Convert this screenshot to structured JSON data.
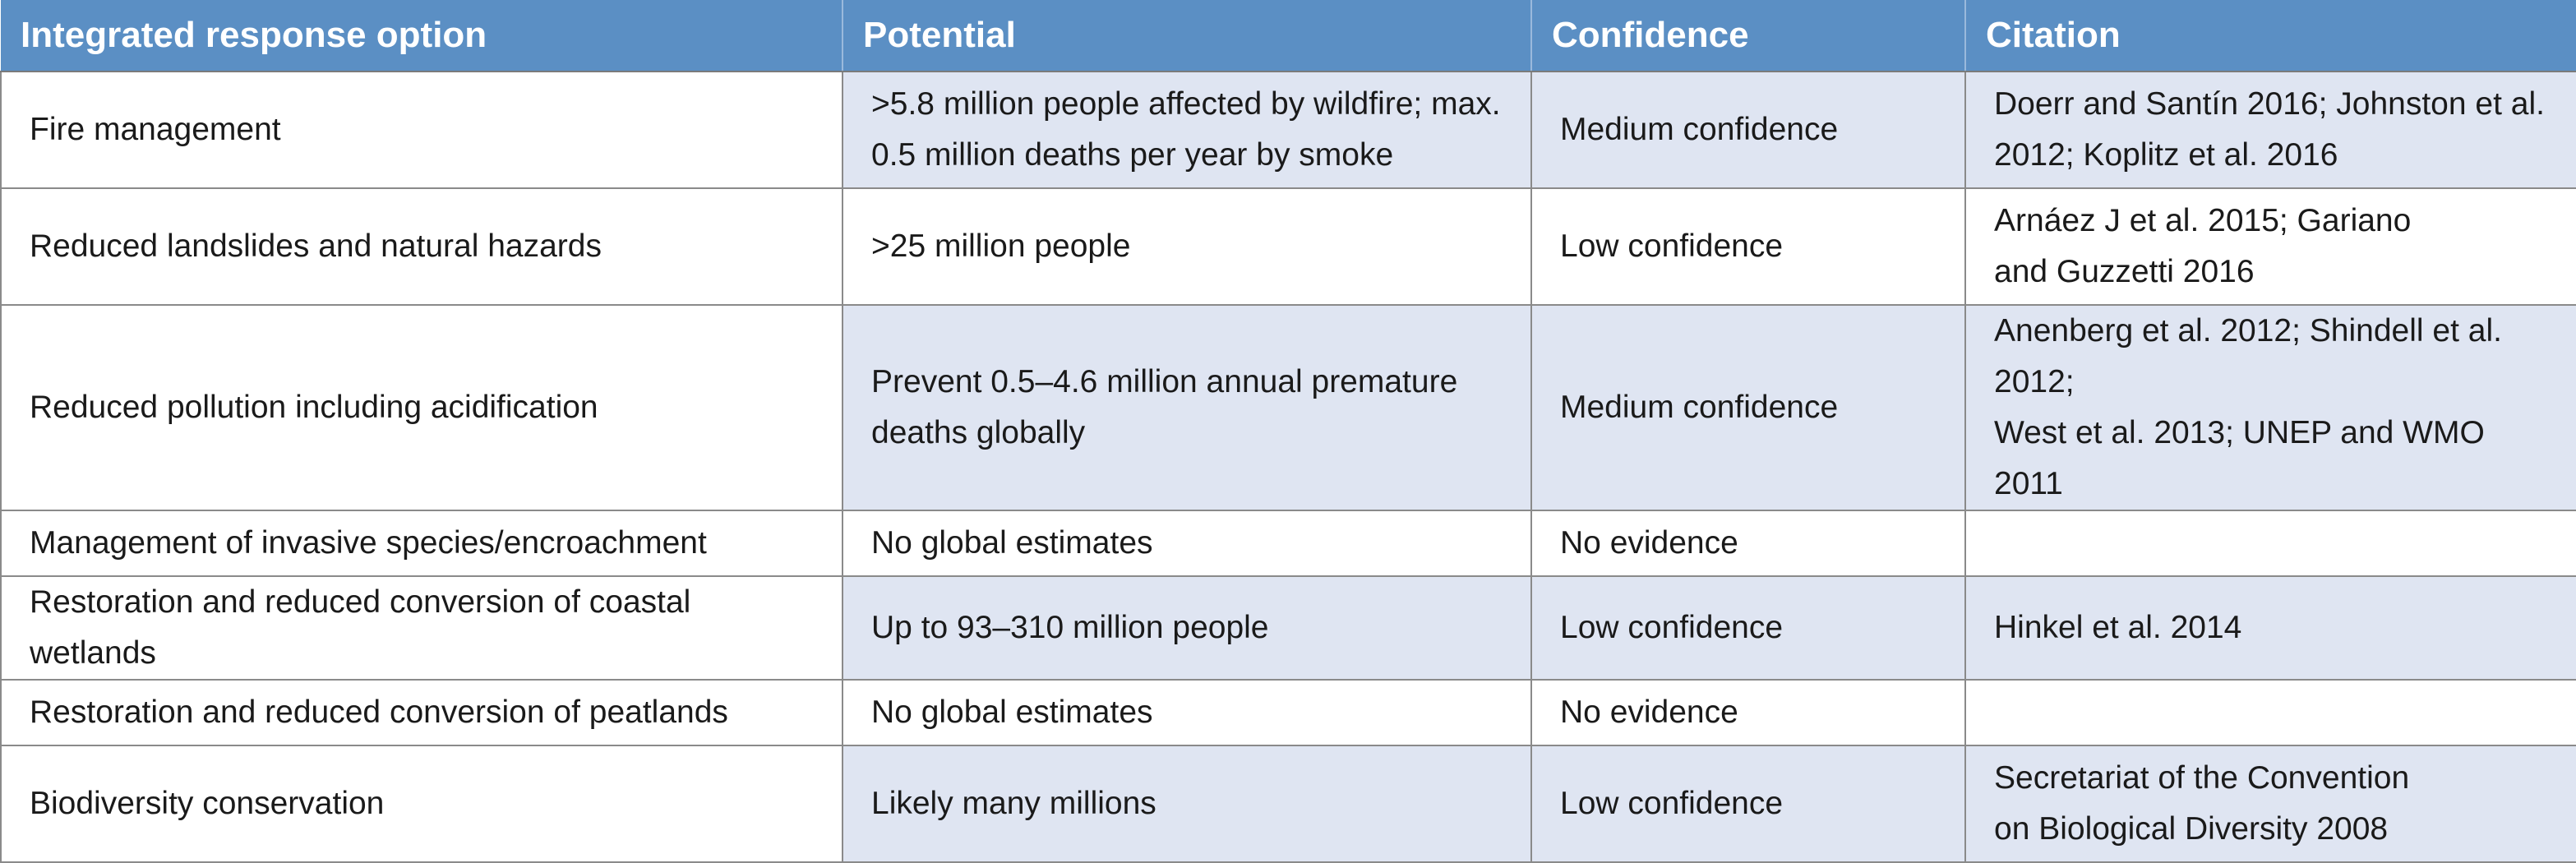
{
  "header": {
    "col1": "Integrated response option",
    "col2": "Potential",
    "col3": "Confidence",
    "col4": "Citation"
  },
  "rows": [
    {
      "option": "Fire management",
      "potential": [
        ">5.8 million people affected by wildfire; max.",
        "0.5 million deaths per year by smoke"
      ],
      "confidence": "Medium confidence",
      "citation": [
        "Doerr and Santín 2016; Johnston et al.",
        "2012; Koplitz et al. 2016"
      ]
    },
    {
      "option": "Reduced landslides and natural hazards",
      "potential": [
        ">25 million people"
      ],
      "confidence": "Low confidence",
      "citation": [
        "Arnáez J et al. 2015; Gariano",
        "and Guzzetti 2016"
      ]
    },
    {
      "option": "Reduced pollution including acidification",
      "potential": [
        "Prevent 0.5–4.6 million annual premature",
        "deaths globally"
      ],
      "confidence": "Medium confidence",
      "citation": [
        "Anenberg et al. 2012; Shindell et al. 2012;",
        "West et al. 2013; UNEP and WMO 2011"
      ]
    },
    {
      "option": "Management of invasive species/encroachment",
      "potential": [
        "No global estimates"
      ],
      "confidence": "No evidence",
      "citation": [
        ""
      ]
    },
    {
      "option": "Restoration and reduced conversion of coastal wetlands",
      "potential": [
        "Up to 93–310 million people"
      ],
      "confidence": "Low confidence",
      "citation": [
        "Hinkel et al. 2014"
      ]
    },
    {
      "option": "Restoration and reduced conversion of peatlands",
      "potential": [
        "No global estimates"
      ],
      "confidence": "No evidence",
      "citation": [
        ""
      ]
    },
    {
      "option": "Biodiversity conservation",
      "potential": [
        "Likely many millions"
      ],
      "confidence": "Low confidence",
      "citation": [
        "Secretariat of the Convention",
        "on Biological Diversity 2008"
      ]
    }
  ],
  "colors": {
    "header_bg": "#5b8fc4",
    "shaded_cell_bg": "#dfe5f2",
    "header_text": "#ffffff"
  }
}
